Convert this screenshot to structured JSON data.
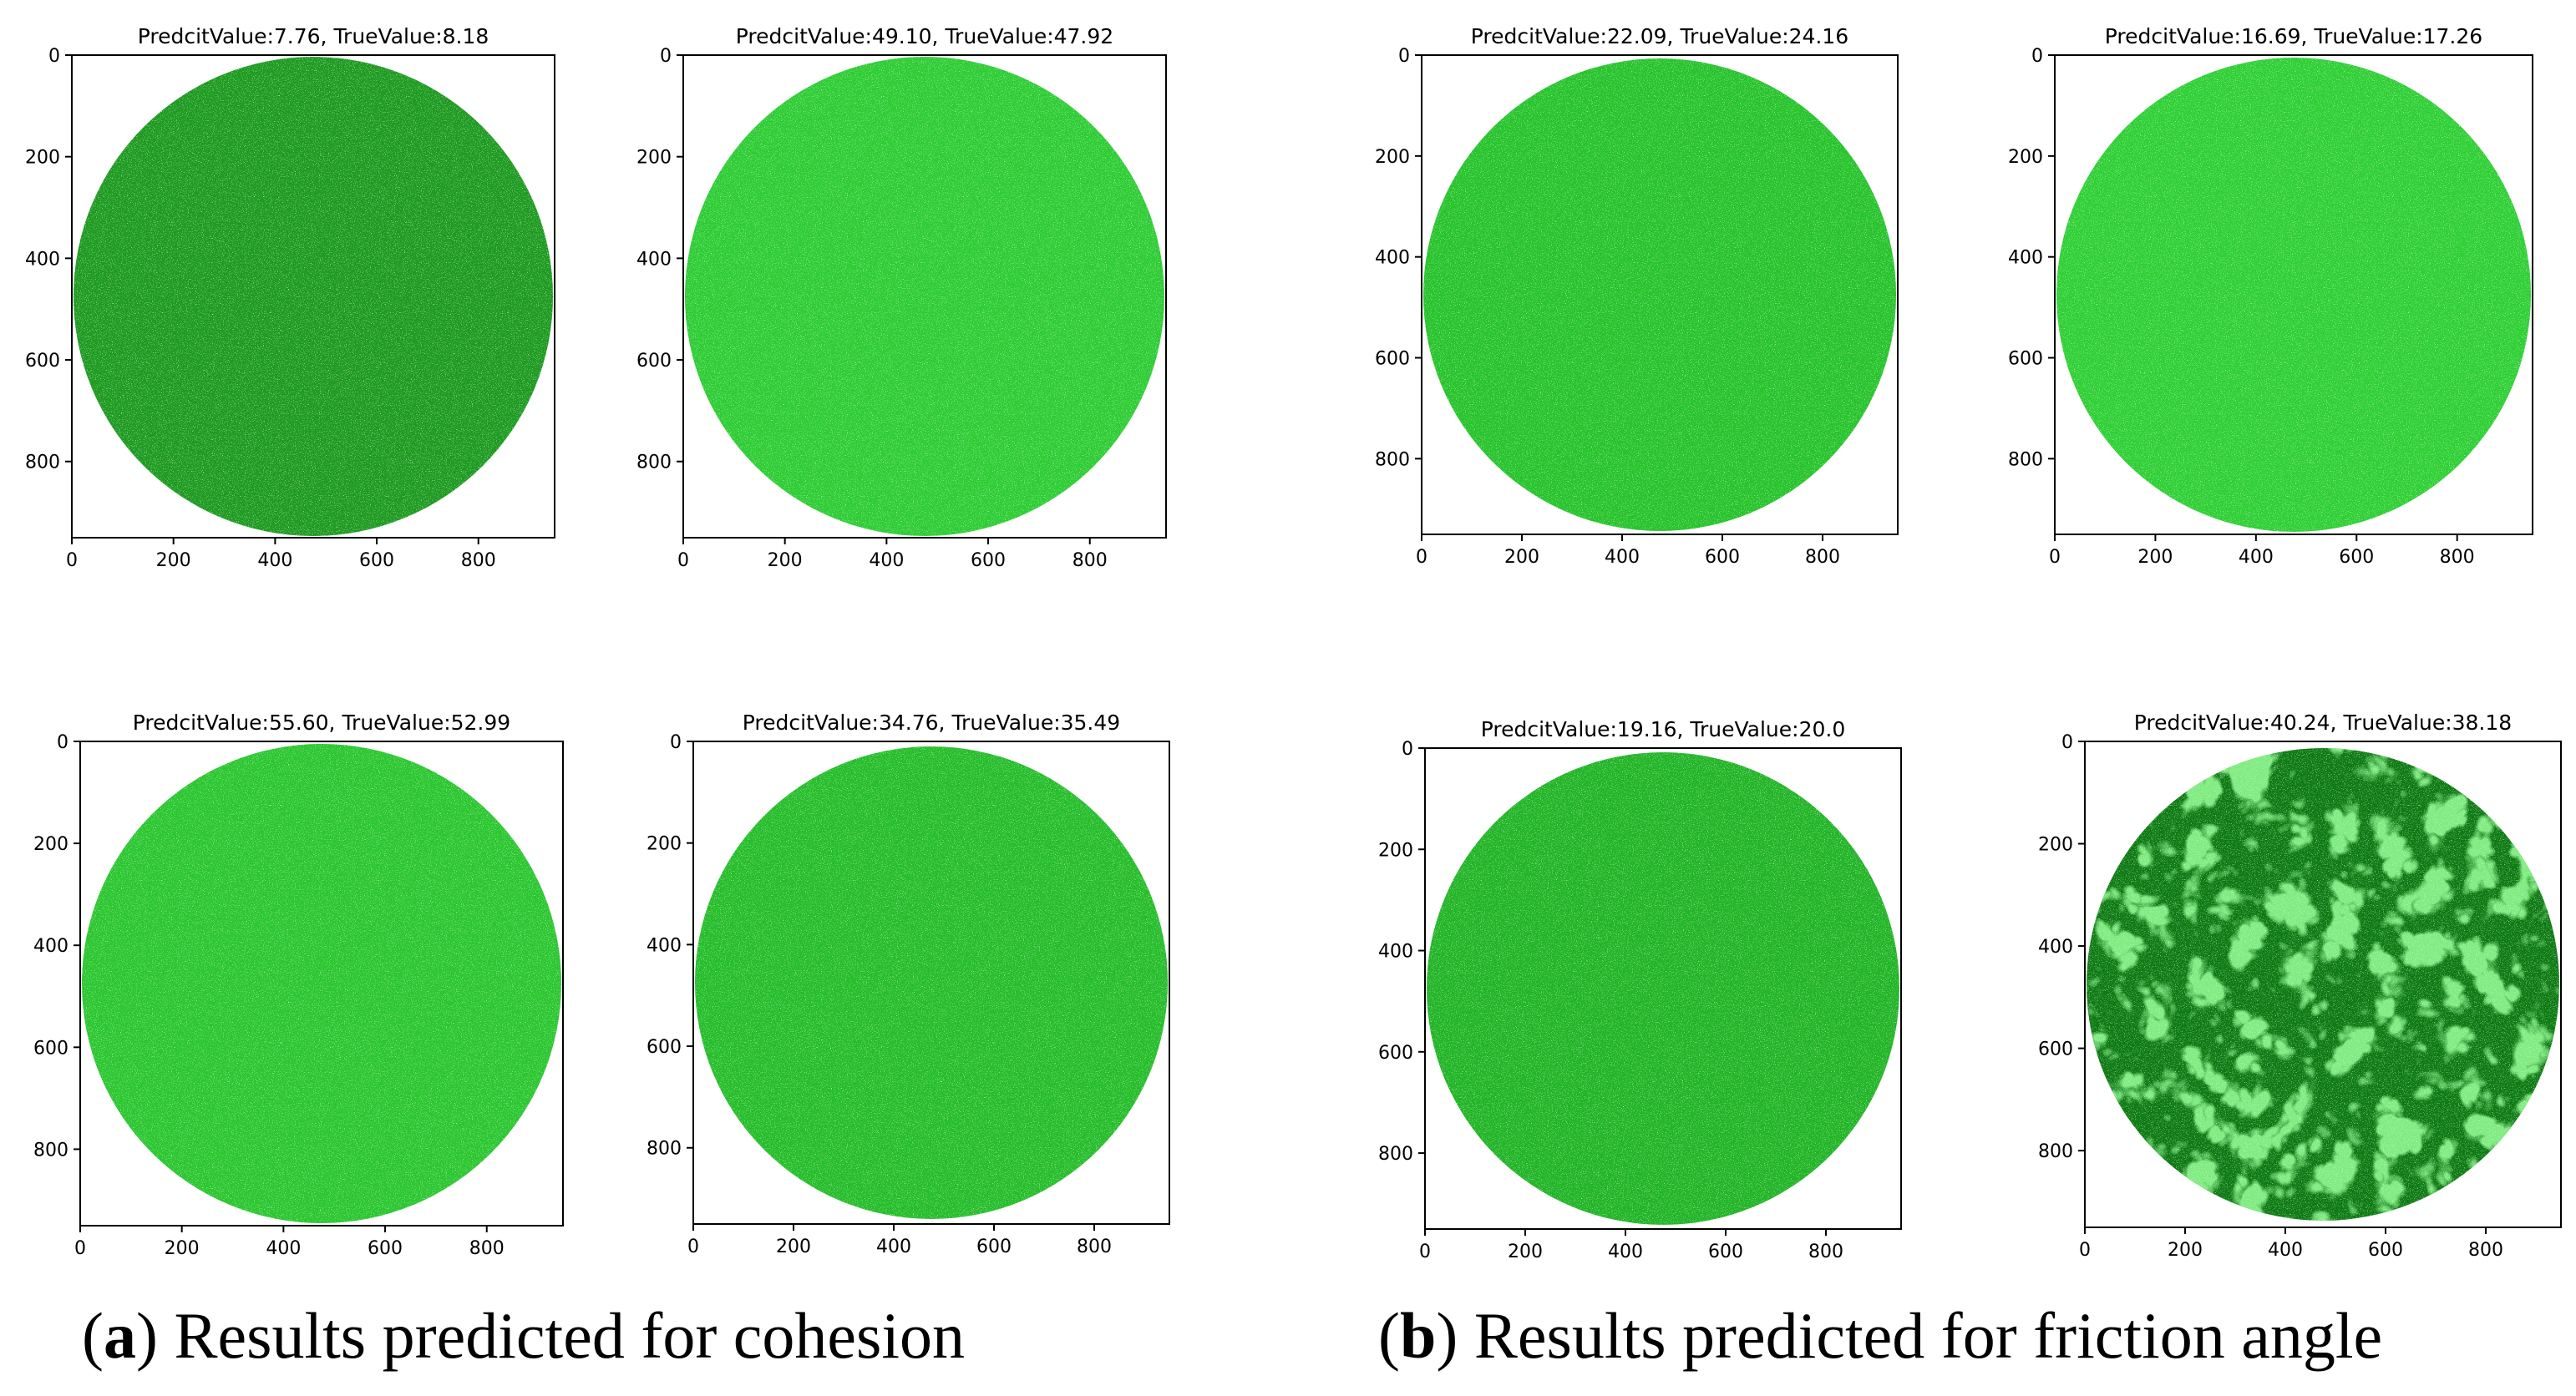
{
  "figure": {
    "panels": [
      {
        "title": "PredcitValue:7.76, TrueValue:8.18",
        "predicted": 7.76,
        "true_value": 8.18,
        "tint": "#1f9a22",
        "group": "a"
      },
      {
        "title": "PredcitValue:49.10, TrueValue:47.92",
        "predicted": 49.1,
        "true_value": 47.92,
        "tint": "#2fcc35",
        "group": "a"
      },
      {
        "title": "PredcitValue:22.09, TrueValue:24.16",
        "predicted": 22.09,
        "true_value": 24.16,
        "tint": "#28c32d",
        "group": "b"
      },
      {
        "title": "PredcitValue:16.69, TrueValue:17.26",
        "predicted": 16.69,
        "true_value": 17.26,
        "tint": "#30cf36",
        "group": "b"
      },
      {
        "title": "PredcitValue:55.60, TrueValue:52.99",
        "predicted": 55.6,
        "true_value": 52.99,
        "tint": "#2cc631",
        "group": "a"
      },
      {
        "title": "PredcitValue:34.76, TrueValue:35.49",
        "predicted": 34.76,
        "true_value": 35.49,
        "tint": "#27bd2c",
        "group": "a"
      },
      {
        "title": "PredcitValue:19.16, TrueValue:20.0",
        "predicted": 19.16,
        "true_value": 20.0,
        "tint": "#23b428",
        "group": "b"
      },
      {
        "title": "PredcitValue:40.24, TrueValue:38.18",
        "predicted": 40.24,
        "true_value": 38.18,
        "tint": "#0f7a14",
        "group": "b"
      }
    ],
    "ticks": [
      0,
      200,
      400,
      600,
      800
    ],
    "axis_max": 950
  },
  "captions": {
    "a_letter": "a",
    "a_text": "Results predicted for cohesion",
    "b_letter": "b",
    "b_text": "Results predicted for friction angle"
  }
}
